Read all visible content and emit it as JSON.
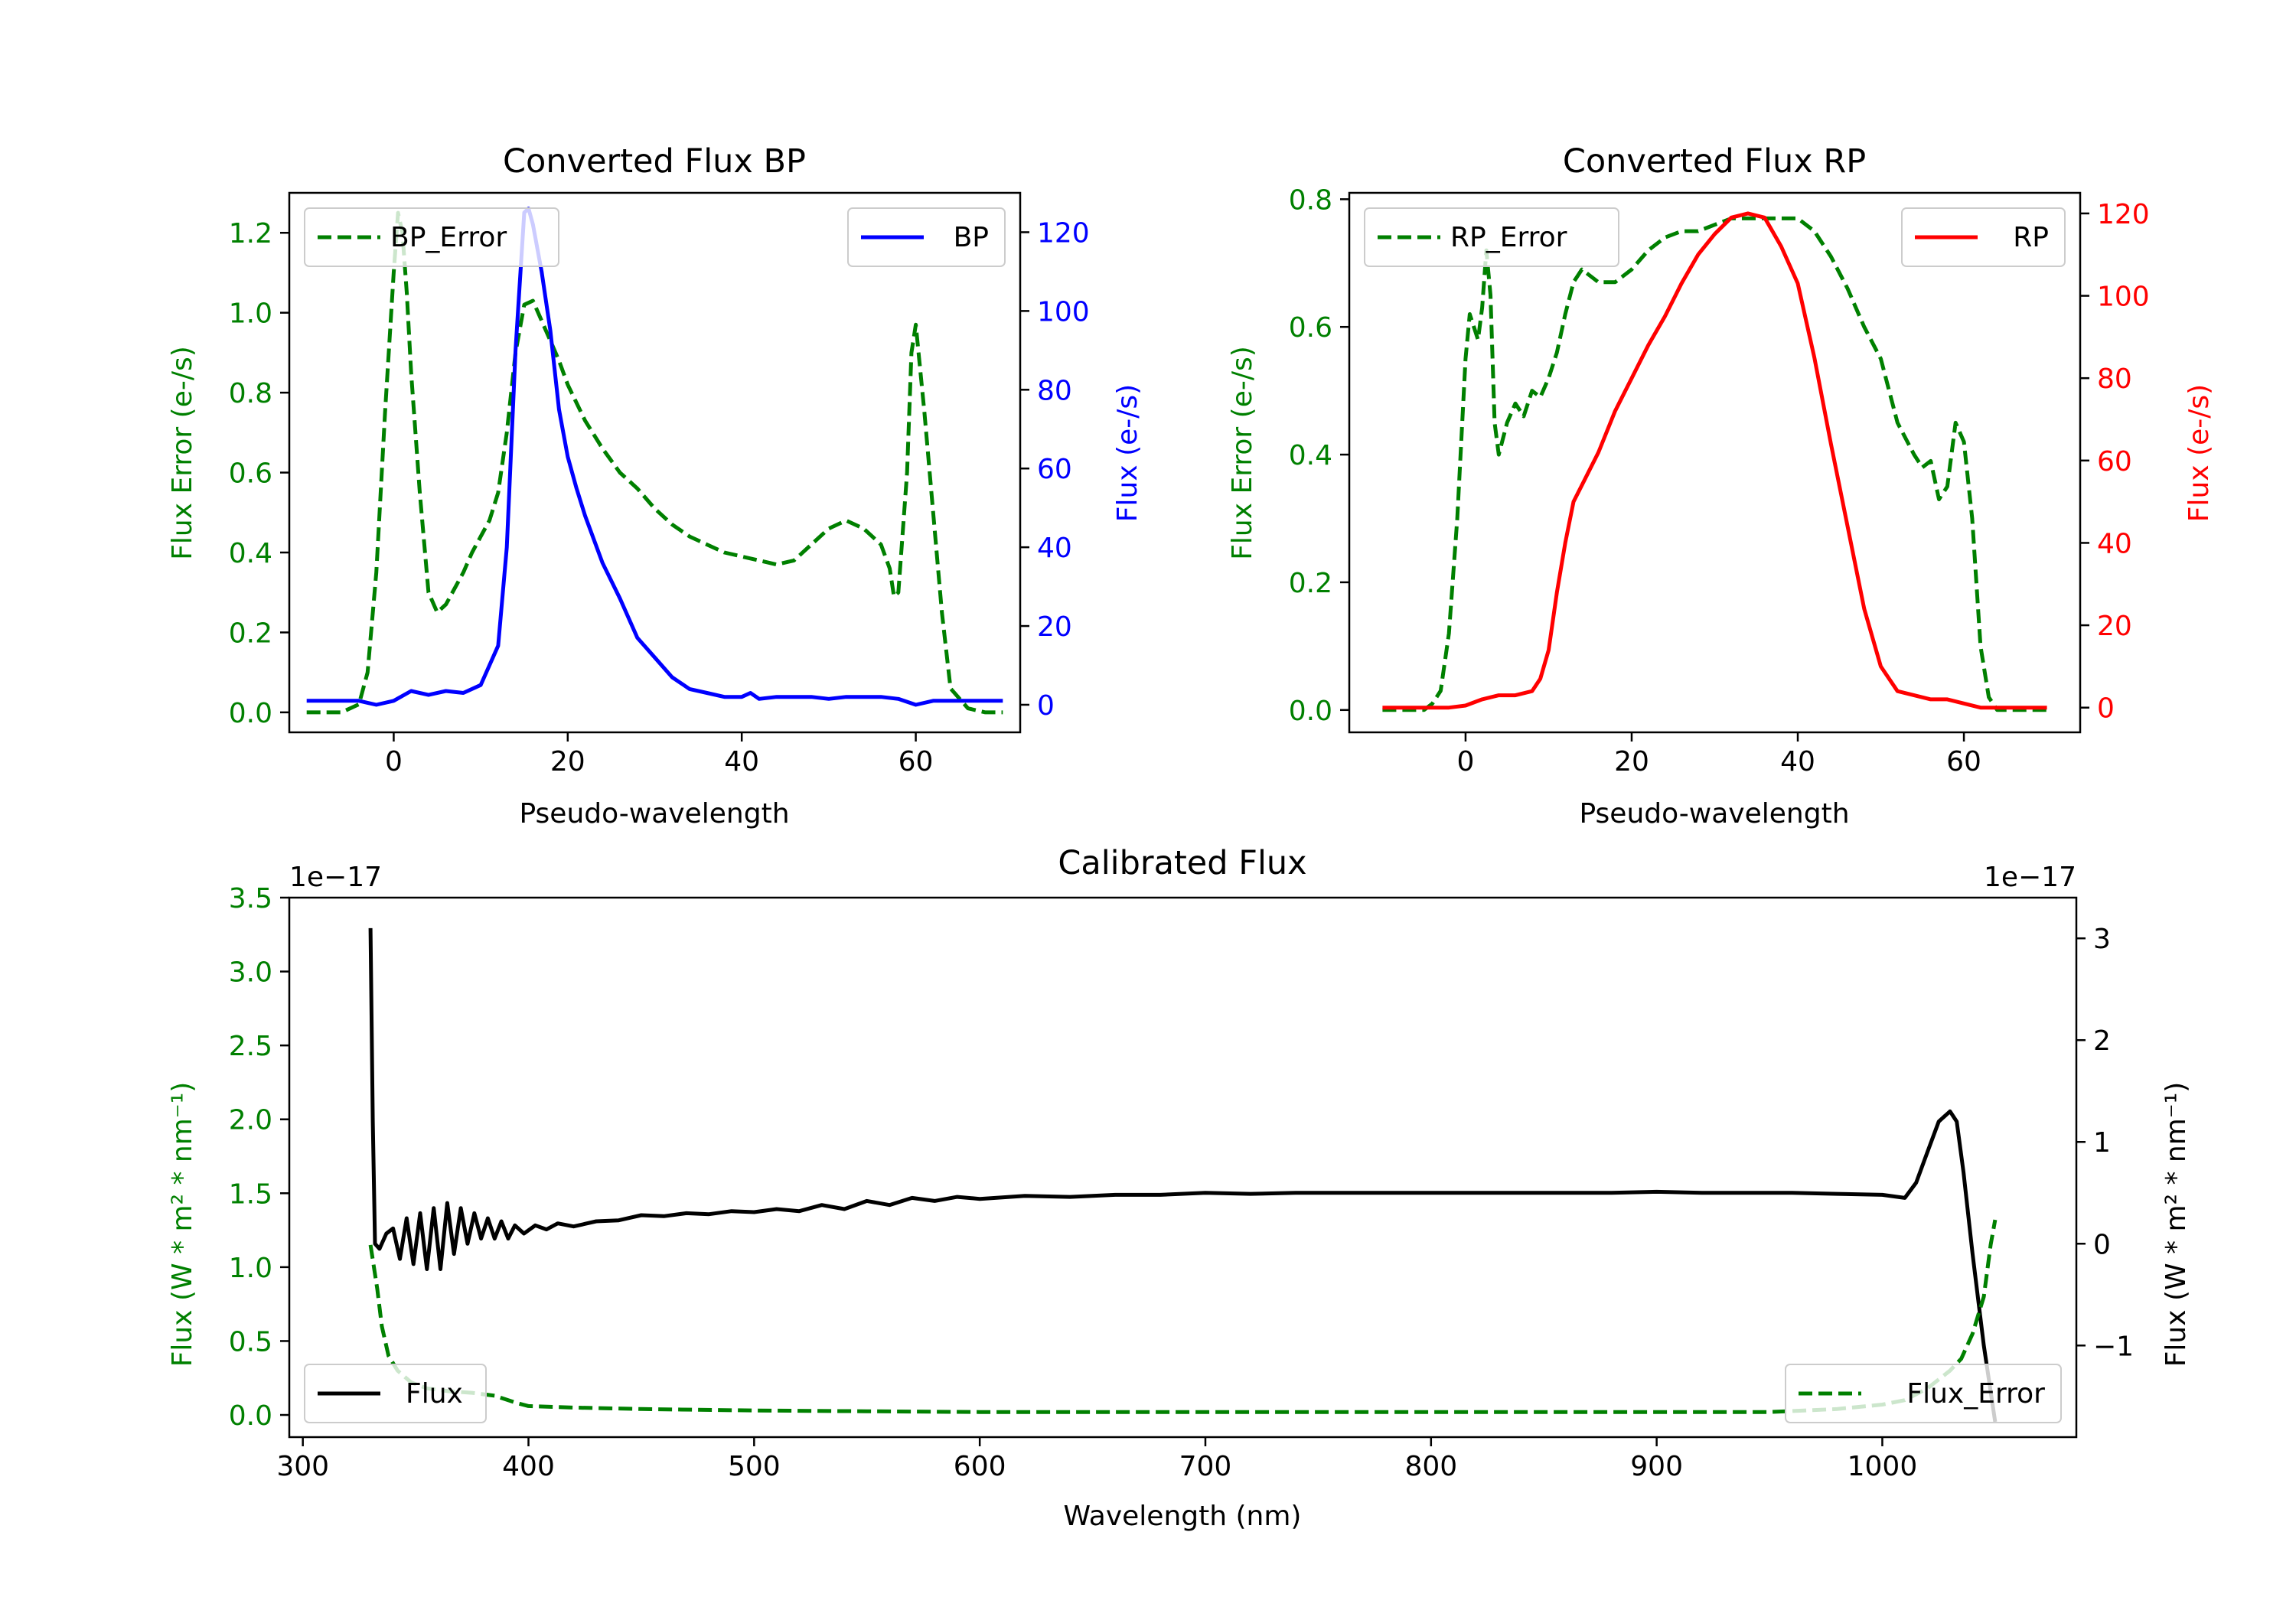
{
  "chart_data": [
    {
      "id": "bp",
      "type": "line",
      "title": "Converted Flux BP",
      "xlabel": "Pseudo-wavelength",
      "ylabel_left": "Flux Error (e-/s)",
      "ylabel_right": "Flux (e-/s)",
      "xlim": [
        -12,
        72
      ],
      "ylim_left": [
        -0.05,
        1.3
      ],
      "ylim_right": [
        -7,
        130
      ],
      "xticks": [
        0,
        20,
        40,
        60
      ],
      "yticks_left": [
        0.0,
        0.2,
        0.4,
        0.6,
        0.8,
        1.0,
        1.2
      ],
      "yticks_right": [
        0,
        20,
        40,
        60,
        80,
        100,
        120
      ],
      "ytick_labels_left": [
        "0.0",
        "0.2",
        "0.4",
        "0.6",
        "0.8",
        "1.0",
        "1.2"
      ],
      "ytick_labels_right": [
        "0",
        "20",
        "40",
        "60",
        "80",
        "100",
        "120"
      ],
      "series": [
        {
          "name": "BP_Error",
          "axis": "left",
          "color": "#008000",
          "style": "dashed",
          "x": [
            -10,
            -6,
            -4,
            -3,
            -2,
            -1,
            0,
            0.5,
            1,
            1.5,
            2,
            3,
            4,
            5,
            6,
            7,
            8,
            9,
            10,
            11,
            12,
            13,
            14,
            15,
            16,
            17,
            18,
            19,
            20,
            22,
            24,
            26,
            28,
            30,
            32,
            34,
            36,
            38,
            40,
            42,
            44,
            46,
            48,
            50,
            52,
            54,
            56,
            57,
            57.5,
            58,
            59,
            59.5,
            60,
            61,
            62,
            63,
            64,
            66,
            68,
            70
          ],
          "y": [
            0.0,
            0.0,
            0.02,
            0.1,
            0.35,
            0.75,
            1.1,
            1.25,
            1.2,
            1.05,
            0.85,
            0.55,
            0.3,
            0.25,
            0.27,
            0.31,
            0.35,
            0.4,
            0.44,
            0.48,
            0.55,
            0.7,
            0.9,
            1.02,
            1.03,
            0.98,
            0.93,
            0.88,
            0.82,
            0.73,
            0.66,
            0.6,
            0.56,
            0.51,
            0.47,
            0.44,
            0.42,
            0.4,
            0.39,
            0.38,
            0.37,
            0.38,
            0.42,
            0.46,
            0.48,
            0.46,
            0.42,
            0.36,
            0.29,
            0.3,
            0.6,
            0.9,
            0.97,
            0.75,
            0.5,
            0.25,
            0.06,
            0.01,
            0.0,
            0.0
          ]
        },
        {
          "name": "BP",
          "axis": "right",
          "color": "#0000ff",
          "style": "solid",
          "x": [
            -10,
            -6,
            -4,
            -3,
            -2,
            0,
            2,
            4,
            6,
            8,
            10,
            11,
            12,
            13,
            14,
            15,
            15.5,
            16,
            17,
            18,
            19,
            20,
            21,
            22,
            24,
            26,
            28,
            30,
            32,
            34,
            36,
            38,
            40,
            41,
            42,
            44,
            46,
            48,
            50,
            52,
            54,
            56,
            58,
            60,
            62,
            64,
            66,
            68,
            70
          ],
          "y": [
            1,
            1,
            1,
            0.5,
            0,
            1,
            3.5,
            2.5,
            3.5,
            3,
            5,
            10,
            15,
            40,
            90,
            125,
            126,
            122,
            110,
            95,
            75,
            63,
            55,
            48,
            36,
            27,
            17,
            12,
            7,
            4,
            3,
            2,
            2,
            3,
            1.5,
            2,
            2,
            2,
            1.5,
            2,
            2,
            2,
            1.5,
            0,
            1,
            1,
            1,
            1,
            1
          ]
        }
      ],
      "legend": [
        {
          "label": "BP_Error",
          "position": "top-left"
        },
        {
          "label": "BP",
          "position": "top-right"
        }
      ]
    },
    {
      "id": "rp",
      "type": "line",
      "title": "Converted Flux RP",
      "xlabel": "Pseudo-wavelength",
      "ylabel_left": "Flux Error (e-/s)",
      "ylabel_right": "Flux (e-/s)",
      "xlim": [
        -14,
        74
      ],
      "ylim_left": [
        -0.035,
        0.81
      ],
      "ylim_right": [
        -6,
        125
      ],
      "xticks": [
        0,
        20,
        40,
        60
      ],
      "yticks_left": [
        0.0,
        0.2,
        0.4,
        0.6,
        0.8
      ],
      "yticks_right": [
        0,
        20,
        40,
        60,
        80,
        100,
        120
      ],
      "ytick_labels_left": [
        "0.0",
        "0.2",
        "0.4",
        "0.6",
        "0.8"
      ],
      "ytick_labels_right": [
        "0",
        "20",
        "40",
        "60",
        "80",
        "100",
        "120"
      ],
      "series": [
        {
          "name": "RP_Error",
          "axis": "left",
          "color": "#008000",
          "style": "dashed",
          "x": [
            -10,
            -5,
            -4,
            -3,
            -2,
            -1,
            0,
            0.5,
            1,
            1.5,
            2,
            2.5,
            3,
            3.5,
            4,
            5,
            6,
            7,
            8,
            9,
            10,
            11,
            12,
            13,
            14,
            16,
            18,
            20,
            22,
            24,
            26,
            28,
            30,
            32,
            34,
            36,
            38,
            40,
            42,
            44,
            46,
            48,
            50,
            52,
            54,
            55,
            56,
            57,
            58,
            59,
            60,
            61,
            62,
            63,
            64,
            66,
            68,
            70
          ],
          "y": [
            0.0,
            0.0,
            0.01,
            0.03,
            0.12,
            0.3,
            0.55,
            0.62,
            0.6,
            0.58,
            0.63,
            0.72,
            0.65,
            0.45,
            0.4,
            0.45,
            0.48,
            0.46,
            0.5,
            0.49,
            0.52,
            0.56,
            0.62,
            0.67,
            0.69,
            0.67,
            0.67,
            0.69,
            0.72,
            0.74,
            0.75,
            0.75,
            0.76,
            0.77,
            0.77,
            0.77,
            0.77,
            0.77,
            0.75,
            0.71,
            0.66,
            0.6,
            0.55,
            0.45,
            0.4,
            0.38,
            0.39,
            0.33,
            0.35,
            0.45,
            0.42,
            0.3,
            0.1,
            0.02,
            0.0,
            0.0,
            0.0,
            0.0
          ]
        },
        {
          "name": "RP",
          "axis": "right",
          "color": "#ff0000",
          "style": "solid",
          "x": [
            -10,
            -6,
            -2,
            0,
            2,
            4,
            6,
            8,
            9,
            10,
            11,
            12,
            13,
            14,
            16,
            18,
            20,
            22,
            24,
            26,
            28,
            30,
            32,
            34,
            36,
            38,
            40,
            42,
            44,
            46,
            48,
            50,
            52,
            54,
            56,
            58,
            60,
            62,
            64,
            66,
            68,
            70
          ],
          "y": [
            0,
            0,
            0,
            0.5,
            2,
            3,
            3,
            4,
            7,
            14,
            28,
            40,
            50,
            54,
            62,
            72,
            80,
            88,
            95,
            103,
            110,
            115,
            119,
            120,
            119,
            112,
            103,
            85,
            64,
            44,
            24,
            10,
            4,
            3,
            2,
            2,
            1,
            0,
            0,
            0,
            0,
            0
          ]
        }
      ],
      "legend": [
        {
          "label": "RP_Error",
          "position": "top-left"
        },
        {
          "label": "RP",
          "position": "top-right"
        }
      ]
    },
    {
      "id": "cal",
      "type": "line",
      "title": "Calibrated Flux",
      "xlabel": "Wavelength (nm)",
      "ylabel_left": "Flux (W * m² * nm⁻¹)",
      "ylabel_right": "Flux (W * m² * nm⁻¹)",
      "offset_left": "1e−17",
      "offset_right": "1e−17",
      "xlim": [
        294,
        1086
      ],
      "ylim_left": [
        -0.15,
        3.5
      ],
      "ylim_right": [
        -1.9,
        3.4
      ],
      "xticks": [
        300,
        400,
        500,
        600,
        700,
        800,
        900,
        1000
      ],
      "yticks_left": [
        0.0,
        0.5,
        1.0,
        1.5,
        2.0,
        2.5,
        3.0,
        3.5
      ],
      "yticks_right": [
        -1,
        0,
        1,
        2,
        3
      ],
      "ytick_labels_left": [
        "0.0",
        "0.5",
        "1.0",
        "1.5",
        "2.0",
        "2.5",
        "3.0",
        "3.5"
      ],
      "ytick_labels_right": [
        "−1",
        "0",
        "1",
        "2",
        "3"
      ],
      "series": [
        {
          "name": "Flux",
          "axis": "right",
          "color": "#000000",
          "style": "solid",
          "x": [
            330,
            331,
            332,
            334,
            337,
            340,
            343,
            346,
            349,
            352,
            355,
            358,
            361,
            364,
            367,
            370,
            373,
            376,
            379,
            382,
            385,
            388,
            391,
            394,
            398,
            403,
            408,
            413,
            420,
            430,
            440,
            450,
            460,
            470,
            480,
            490,
            500,
            510,
            520,
            530,
            540,
            550,
            560,
            570,
            580,
            590,
            600,
            620,
            640,
            660,
            680,
            700,
            720,
            740,
            760,
            780,
            800,
            820,
            840,
            860,
            880,
            900,
            920,
            940,
            960,
            980,
            1000,
            1010,
            1015,
            1020,
            1025,
            1030,
            1033,
            1036,
            1040,
            1045,
            1050
          ],
          "y": [
            3.1,
            1.2,
            0.0,
            -0.05,
            0.1,
            0.15,
            -0.15,
            0.25,
            -0.2,
            0.3,
            -0.25,
            0.35,
            -0.25,
            0.4,
            -0.1,
            0.35,
            0.0,
            0.3,
            0.05,
            0.25,
            0.05,
            0.22,
            0.05,
            0.18,
            0.1,
            0.18,
            0.14,
            0.2,
            0.17,
            0.22,
            0.23,
            0.28,
            0.27,
            0.3,
            0.29,
            0.32,
            0.31,
            0.34,
            0.32,
            0.38,
            0.34,
            0.42,
            0.38,
            0.45,
            0.42,
            0.46,
            0.44,
            0.47,
            0.46,
            0.48,
            0.48,
            0.5,
            0.49,
            0.5,
            0.5,
            0.5,
            0.5,
            0.5,
            0.5,
            0.5,
            0.5,
            0.51,
            0.5,
            0.5,
            0.5,
            0.49,
            0.48,
            0.45,
            0.6,
            0.9,
            1.2,
            1.3,
            1.2,
            0.7,
            -0.1,
            -1.0,
            -1.75
          ]
        },
        {
          "name": "Flux_Error",
          "axis": "left",
          "color": "#008000",
          "style": "dashed",
          "x": [
            330,
            331,
            333,
            335,
            338,
            342,
            348,
            355,
            365,
            375,
            385,
            395,
            400,
            420,
            450,
            500,
            550,
            600,
            650,
            700,
            750,
            800,
            850,
            900,
            950,
            980,
            1000,
            1010,
            1020,
            1030,
            1035,
            1040,
            1045,
            1048,
            1050
          ],
          "y": [
            1.15,
            1.05,
            0.85,
            0.6,
            0.4,
            0.3,
            0.22,
            0.18,
            0.16,
            0.15,
            0.13,
            0.08,
            0.06,
            0.05,
            0.04,
            0.03,
            0.025,
            0.02,
            0.02,
            0.02,
            0.02,
            0.02,
            0.02,
            0.02,
            0.02,
            0.04,
            0.07,
            0.1,
            0.18,
            0.3,
            0.38,
            0.55,
            0.8,
            1.15,
            1.32
          ]
        }
      ],
      "legend": [
        {
          "label": "Flux",
          "position": "bottom-left"
        },
        {
          "label": "Flux_Error",
          "position": "bottom-right"
        }
      ]
    }
  ]
}
